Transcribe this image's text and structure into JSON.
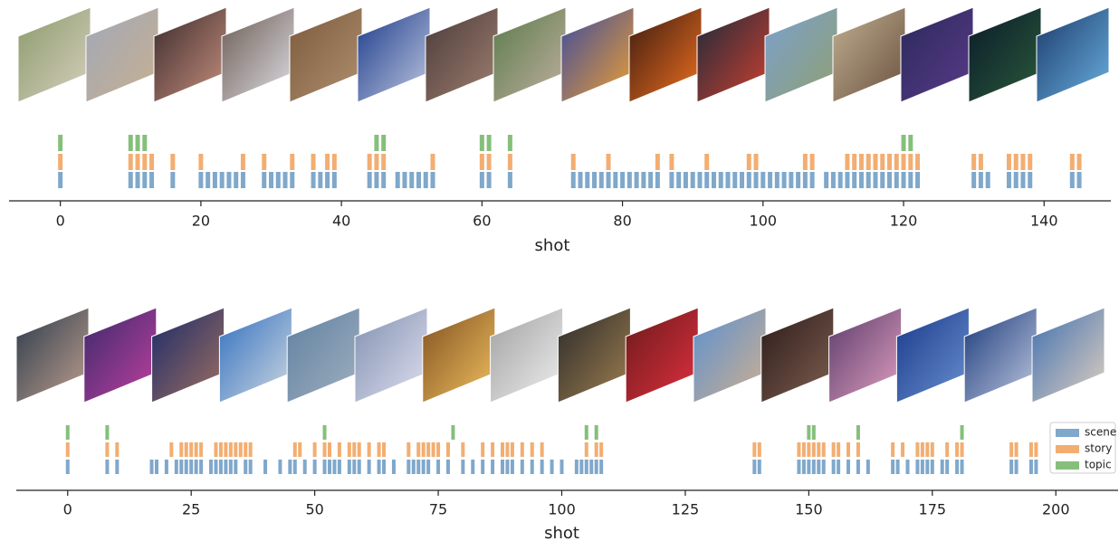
{
  "chart_data": [
    {
      "type": "event",
      "xlabel": "shot",
      "xlim": [
        -7.3,
        149.5
      ],
      "xticks": [
        0,
        20,
        40,
        60,
        80,
        100,
        120,
        140
      ],
      "series": [
        {
          "color": "#7fa8cb",
          "values": [
            0,
            10,
            11,
            12,
            13,
            16,
            20,
            21,
            22,
            23,
            24,
            25,
            26,
            29,
            30,
            31,
            32,
            33,
            36,
            37,
            38,
            39,
            44,
            45,
            46,
            48,
            49,
            50,
            51,
            52,
            53,
            60,
            61,
            64,
            73,
            74,
            75,
            76,
            77,
            78,
            79,
            80,
            81,
            82,
            83,
            84,
            85,
            87,
            88,
            89,
            90,
            91,
            92,
            93,
            94,
            95,
            96,
            97,
            98,
            99,
            100,
            101,
            102,
            103,
            104,
            105,
            106,
            107,
            109,
            110,
            111,
            112,
            113,
            114,
            115,
            116,
            117,
            118,
            119,
            120,
            121,
            122,
            130,
            131,
            132,
            135,
            136,
            137,
            138,
            144,
            145
          ]
        },
        {
          "color": "#f2ae72",
          "values": [
            0,
            10,
            11,
            12,
            13,
            16,
            20,
            26,
            29,
            33,
            36,
            38,
            39,
            44,
            45,
            46,
            53,
            60,
            61,
            64,
            73,
            78,
            85,
            87,
            92,
            98,
            99,
            106,
            107,
            112,
            113,
            114,
            115,
            116,
            117,
            118,
            119,
            120,
            121,
            122,
            130,
            131,
            135,
            136,
            137,
            138,
            144,
            145
          ]
        },
        {
          "color": "#86bf7c",
          "values": [
            0,
            10,
            11,
            12,
            45,
            46,
            60,
            61,
            64,
            120,
            121
          ]
        }
      ]
    },
    {
      "type": "event",
      "xlabel": "shot",
      "xlim": [
        -10.4,
        212.6
      ],
      "xticks": [
        0,
        25,
        50,
        75,
        100,
        125,
        150,
        175,
        200
      ],
      "legend": "right",
      "series": [
        {
          "name": "scene",
          "color": "#7fa8cb",
          "values": [
            0,
            8,
            10,
            17,
            18,
            20,
            22,
            23,
            24,
            25,
            26,
            27,
            29,
            30,
            31,
            32,
            33,
            34,
            36,
            37,
            40,
            43,
            45,
            46,
            48,
            50,
            52,
            53,
            54,
            55,
            57,
            58,
            59,
            61,
            63,
            64,
            66,
            69,
            70,
            71,
            72,
            73,
            75,
            77,
            80,
            82,
            84,
            86,
            88,
            89,
            90,
            92,
            94,
            96,
            98,
            100,
            103,
            104,
            105,
            106,
            107,
            108,
            139,
            140,
            148,
            149,
            150,
            151,
            152,
            153,
            155,
            156,
            158,
            160,
            162,
            167,
            168,
            170,
            172,
            173,
            174,
            175,
            177,
            178,
            180,
            181,
            191,
            192,
            195,
            196
          ]
        },
        {
          "name": "story",
          "color": "#f2ae72",
          "values": [
            0,
            8,
            10,
            21,
            23,
            24,
            25,
            26,
            27,
            30,
            31,
            32,
            33,
            34,
            35,
            36,
            37,
            46,
            47,
            50,
            52,
            53,
            55,
            57,
            58,
            59,
            61,
            63,
            64,
            69,
            71,
            72,
            73,
            74,
            75,
            77,
            80,
            84,
            86,
            88,
            89,
            90,
            92,
            94,
            96,
            105,
            107,
            108,
            139,
            140,
            148,
            149,
            150,
            151,
            152,
            153,
            155,
            156,
            158,
            160,
            167,
            169,
            172,
            173,
            174,
            175,
            178,
            180,
            181,
            191,
            192,
            195,
            196
          ]
        },
        {
          "name": "topic",
          "color": "#86bf7c",
          "values": [
            0,
            8,
            52,
            78,
            105,
            107,
            150,
            151,
            160,
            181
          ]
        }
      ]
    }
  ]
}
